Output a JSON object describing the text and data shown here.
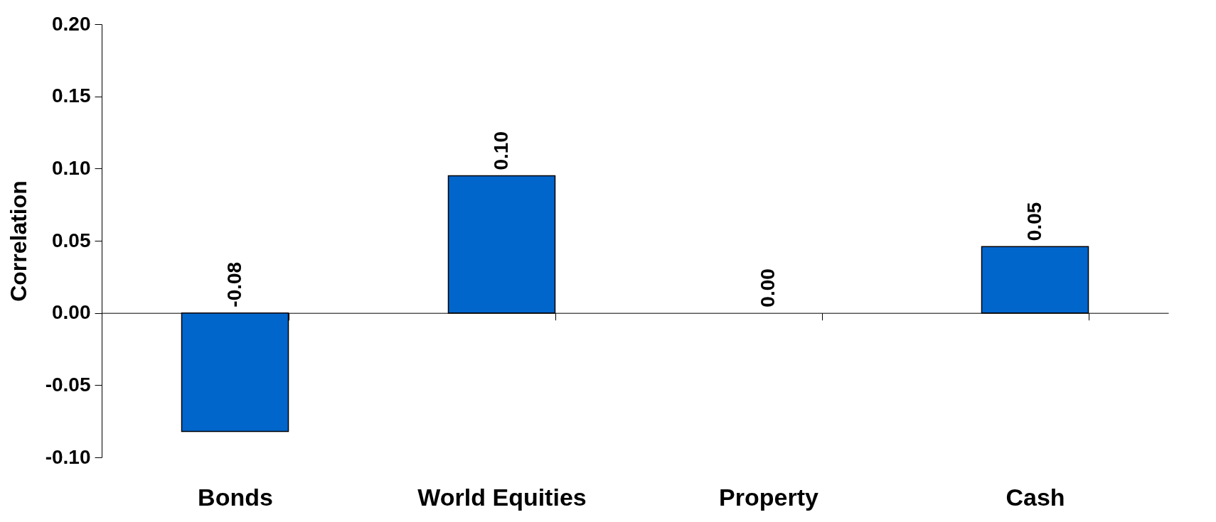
{
  "chart_data": {
    "type": "bar",
    "ylabel": "Correlation",
    "categories": [
      "Bonds",
      "World Equities",
      "Property",
      "Cash"
    ],
    "values": [
      -0.082,
      0.095,
      0.0,
      0.046
    ],
    "value_labels": [
      "-0.08",
      "0.10",
      "0.00",
      "0.05"
    ],
    "color": "#0066cc",
    "ylim": [
      -0.1,
      0.2
    ],
    "yticks": [
      {
        "value": -0.1,
        "label": "-0.10"
      },
      {
        "value": -0.05,
        "label": "-0.05"
      },
      {
        "value": 0,
        "label": "0.00"
      },
      {
        "value": 0.05,
        "label": "0.05"
      },
      {
        "value": 0.1,
        "label": "0.10"
      },
      {
        "value": 0.15,
        "label": "0.15"
      },
      {
        "value": 0.2,
        "label": "0.20"
      }
    ],
    "tick_labels": true
  }
}
